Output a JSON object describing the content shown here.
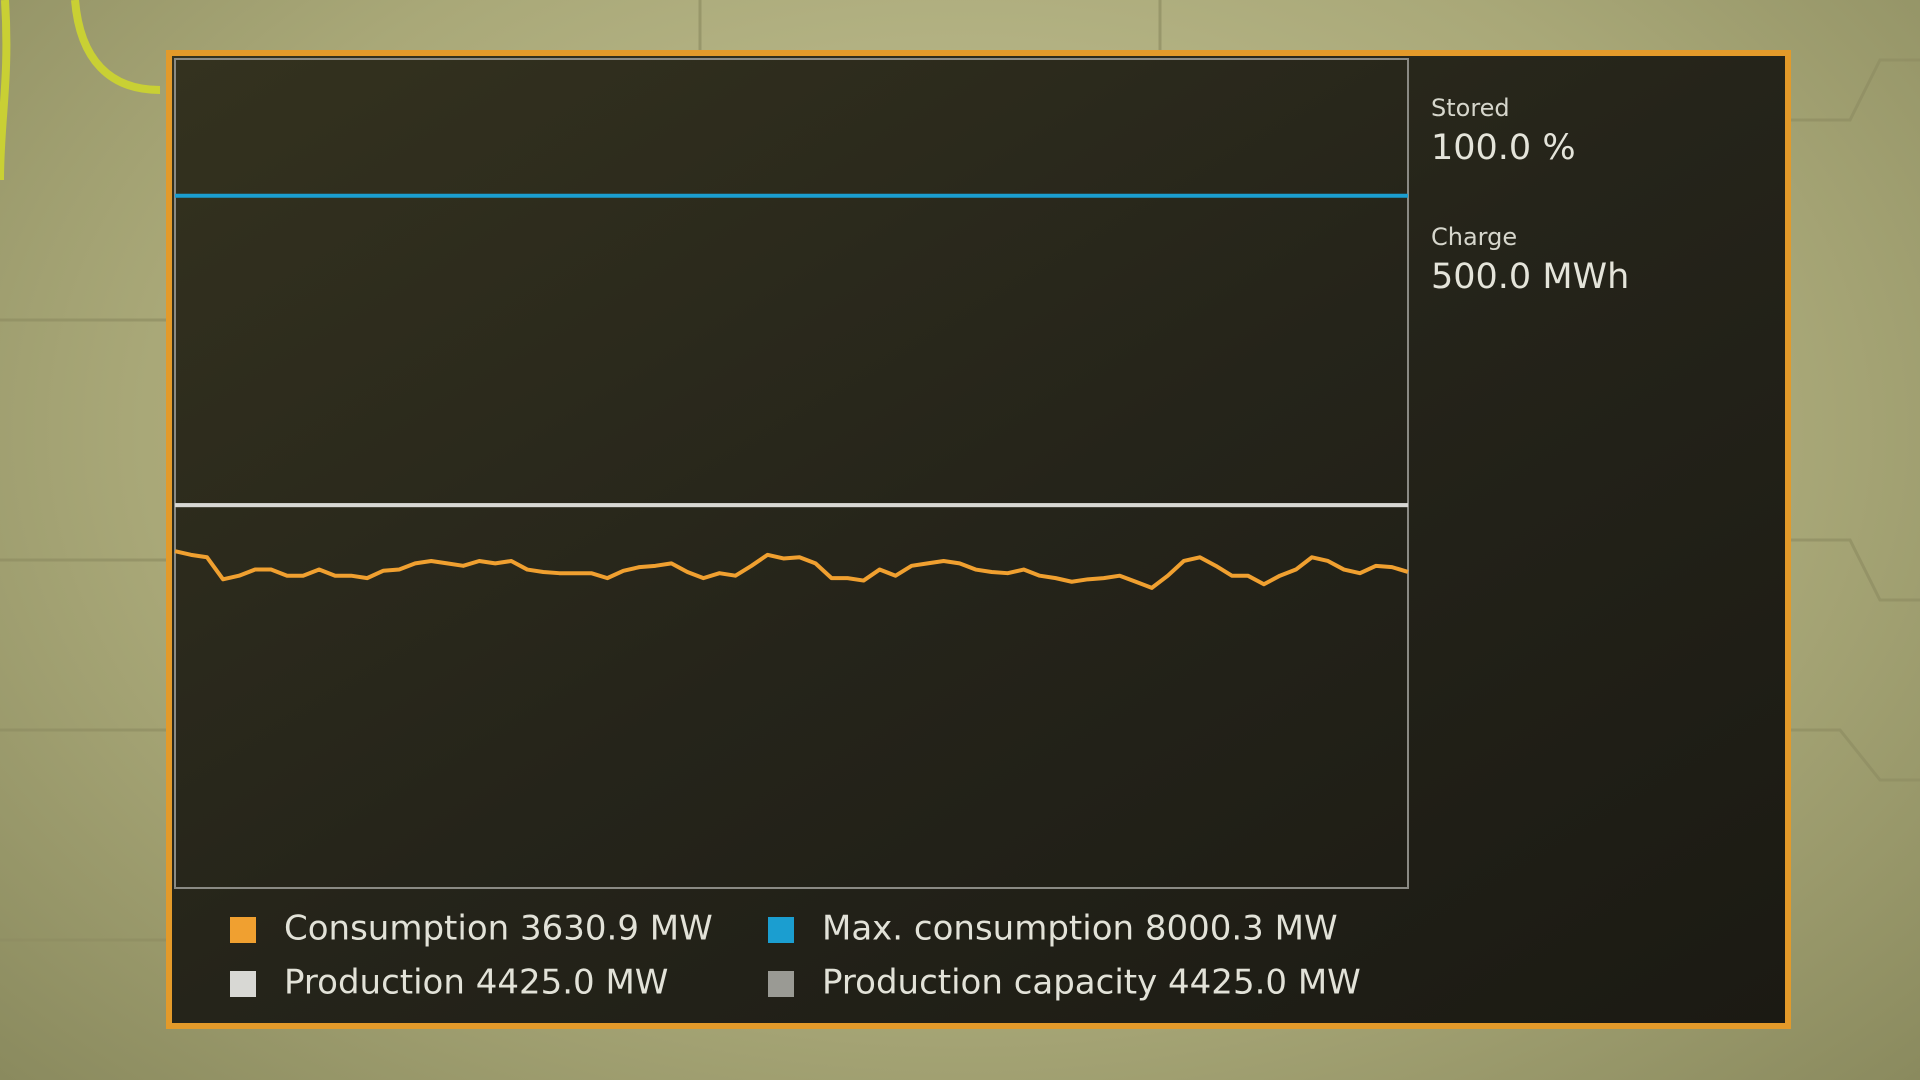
{
  "stats": [
    {
      "label": "Stored",
      "value": "100.0 %"
    },
    {
      "label": "Charge",
      "value": "500.0 MWh"
    }
  ],
  "graph": {
    "type": "line",
    "ylim": [
      0,
      9580
    ],
    "series": [
      {
        "name": "Consumption 3630.9 MW",
        "color": "#f0a030",
        "values": [
          3892,
          3850,
          3822,
          3567,
          3609,
          3680,
          3680,
          3609,
          3609,
          3680,
          3609,
          3609,
          3581,
          3666,
          3680,
          3751,
          3779,
          3751,
          3723,
          3779,
          3751,
          3779,
          3680,
          3652,
          3638,
          3638,
          3638,
          3581,
          3666,
          3708,
          3723,
          3751,
          3652,
          3581,
          3638,
          3609,
          3723,
          3850,
          3808,
          3822,
          3751,
          3581,
          3581,
          3553,
          3680,
          3609,
          3723,
          3751,
          3779,
          3751,
          3680,
          3652,
          3638,
          3680,
          3609,
          3581,
          3539,
          3567,
          3581,
          3609,
          3539,
          3468,
          3609,
          3779,
          3822,
          3723,
          3609,
          3609,
          3510,
          3609,
          3680,
          3822,
          3779,
          3680,
          3638,
          3723,
          3708,
          3652
        ]
      },
      {
        "name": "Max. consumption 8000.3 MW",
        "color": "#1b9ed0",
        "values": [
          8000.3,
          8000.3
        ]
      },
      {
        "name": "Production 4425.0 MW",
        "color": "#d8d8d4",
        "values": [
          4425.0,
          4425.0
        ]
      },
      {
        "name": "Production capacity 4425.0 MW",
        "color": "#9a9a94",
        "values": [
          4425.0,
          4425.0
        ]
      }
    ]
  }
}
